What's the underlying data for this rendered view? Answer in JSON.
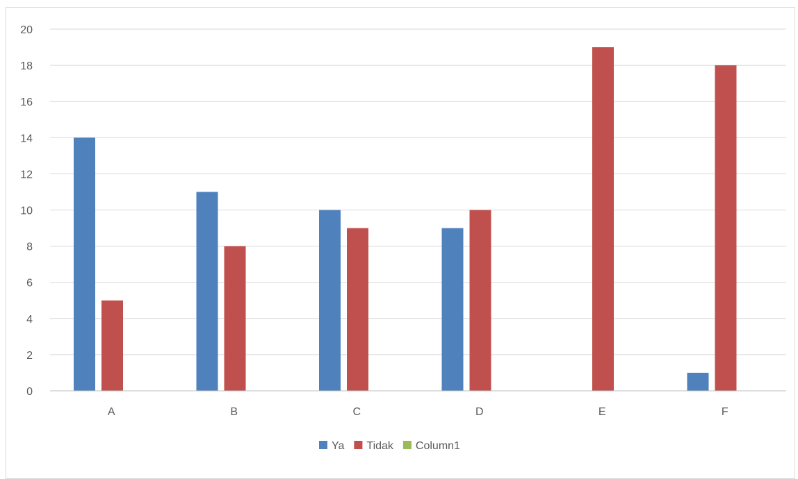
{
  "chart_data": {
    "type": "bar",
    "categories": [
      "A",
      "B",
      "C",
      "D",
      "E",
      "F"
    ],
    "series": [
      {
        "name": "Ya",
        "values": [
          14,
          11,
          10,
          9,
          0,
          1
        ],
        "color": "#4f81bd"
      },
      {
        "name": "Tidak",
        "values": [
          5,
          8,
          9,
          10,
          19,
          18
        ],
        "color": "#c0504d"
      },
      {
        "name": "Column1",
        "values": [
          null,
          null,
          null,
          null,
          null,
          null
        ],
        "color": "#9bbb59"
      }
    ],
    "ylim": [
      0,
      20
    ],
    "yticks": [
      0,
      2,
      4,
      6,
      8,
      10,
      12,
      14,
      16,
      18,
      20
    ],
    "grid": true,
    "legend_position": "bottom"
  },
  "colors": {
    "grid": "#d9d9d9",
    "axis": "#bfbfbf",
    "text": "#595959"
  }
}
